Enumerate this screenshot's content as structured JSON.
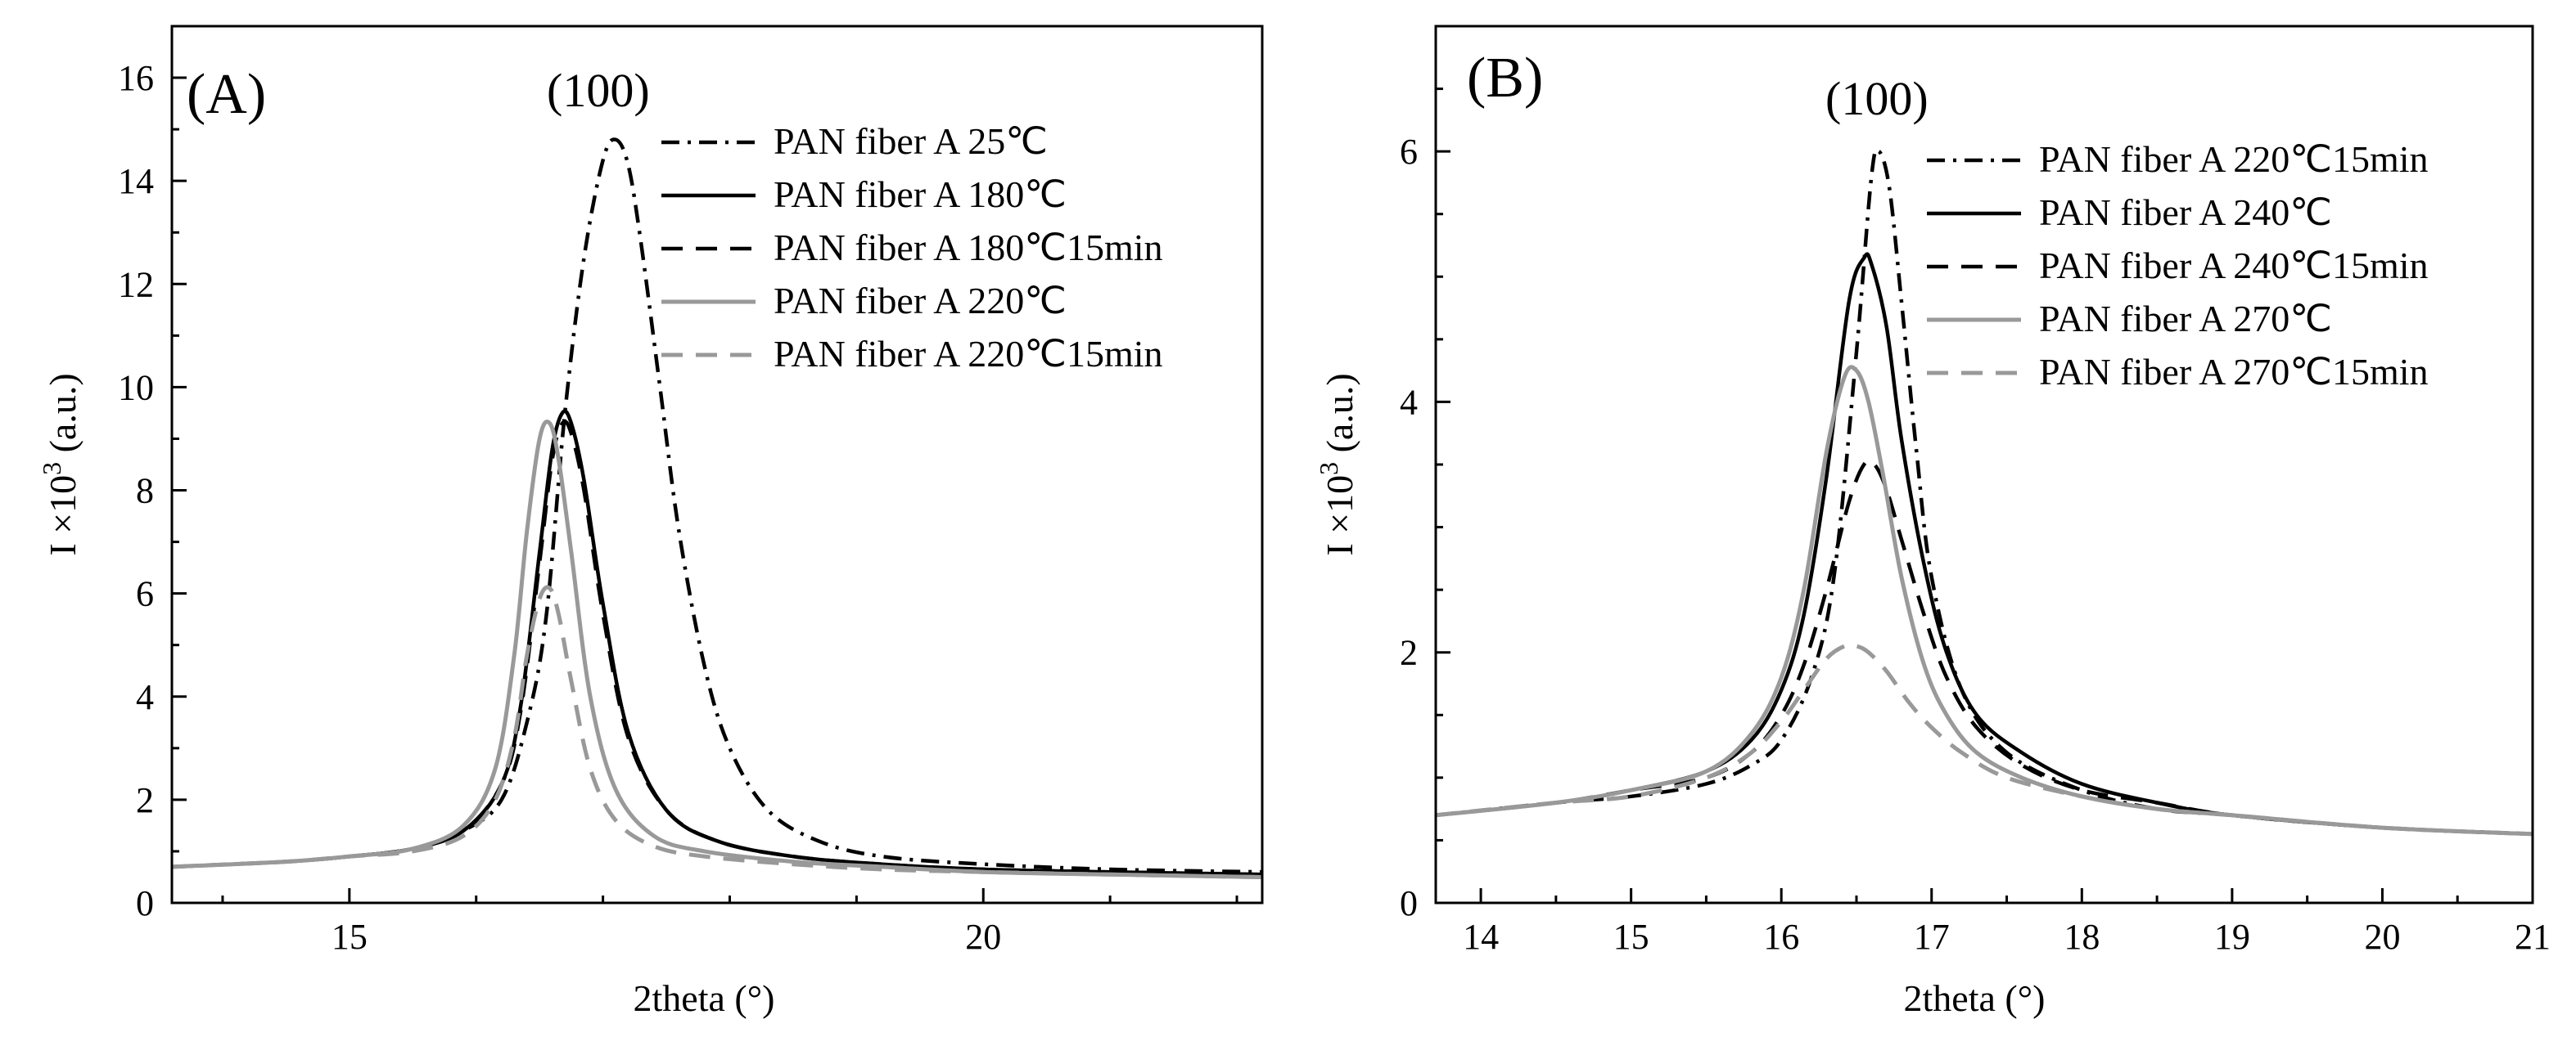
{
  "chart_data": [
    {
      "type": "line",
      "panel_label": "(A)",
      "annotation": "(100)",
      "xlabel": "2theta (°)",
      "ylabel": {
        "base": "I ×10",
        "sup": "3",
        "unit": " (a.u.)"
      },
      "xlim": [
        13.6,
        22.2
      ],
      "ylim": [
        0,
        17
      ],
      "x_ticks": [
        15,
        20
      ],
      "y_ticks": [
        0,
        2,
        4,
        6,
        8,
        10,
        12,
        14,
        16
      ],
      "legend_position": "top-right",
      "series": [
        {
          "name": "PAN fiber A 25℃",
          "style": "dashdot",
          "color": "#000000",
          "x": [
            13.6,
            14.5,
            15.0,
            15.5,
            15.9,
            16.2,
            16.4,
            16.55,
            16.7,
            16.85,
            17.0,
            17.1,
            17.2,
            17.3,
            17.45,
            17.6,
            17.8,
            18.0,
            18.3,
            18.7,
            19.2,
            20.0,
            21.0,
            22.2
          ],
          "y": [
            0.7,
            0.8,
            0.9,
            1.05,
            1.4,
            2.0,
            3.5,
            5.5,
            9.5,
            12.5,
            14.4,
            14.8,
            14.3,
            12.8,
            10.0,
            7.2,
            4.6,
            3.0,
            1.8,
            1.2,
            0.9,
            0.75,
            0.65,
            0.6
          ]
        },
        {
          "name": "PAN fiber A 180℃",
          "style": "solid",
          "color": "#000000",
          "x": [
            13.6,
            14.5,
            15.0,
            15.5,
            15.9,
            16.2,
            16.35,
            16.5,
            16.6,
            16.68,
            16.75,
            16.85,
            17.0,
            17.2,
            17.5,
            17.9,
            18.5,
            19.2,
            20.0,
            21.0,
            22.2
          ],
          "y": [
            0.7,
            0.8,
            0.9,
            1.05,
            1.4,
            2.3,
            3.8,
            6.8,
            8.8,
            9.5,
            9.3,
            8.2,
            5.8,
            3.3,
            1.8,
            1.2,
            0.9,
            0.75,
            0.65,
            0.6,
            0.55
          ]
        },
        {
          "name": "PAN fiber A 180℃15min",
          "style": "dashed",
          "color": "#000000",
          "x": [
            13.6,
            14.5,
            15.0,
            15.5,
            15.9,
            16.2,
            16.35,
            16.5,
            16.6,
            16.68,
            16.75,
            16.85,
            17.0,
            17.2,
            17.5,
            17.9,
            18.5,
            19.2,
            20.0,
            21.0,
            22.2
          ],
          "y": [
            0.7,
            0.8,
            0.9,
            1.05,
            1.4,
            2.3,
            3.7,
            6.6,
            8.6,
            9.3,
            9.1,
            8.0,
            5.6,
            3.2,
            1.8,
            1.2,
            0.9,
            0.75,
            0.65,
            0.6,
            0.55
          ]
        },
        {
          "name": "PAN fiber A 220℃",
          "style": "solid",
          "color": "#999999",
          "x": [
            13.6,
            14.5,
            15.0,
            15.5,
            15.9,
            16.15,
            16.3,
            16.4,
            16.5,
            16.58,
            16.65,
            16.75,
            16.9,
            17.1,
            17.4,
            17.8,
            18.5,
            19.2,
            20.0,
            21.0,
            22.2
          ],
          "y": [
            0.7,
            0.8,
            0.9,
            1.05,
            1.5,
            2.6,
            4.8,
            7.2,
            9.0,
            9.3,
            8.6,
            6.8,
            4.0,
            2.2,
            1.3,
            1.0,
            0.8,
            0.7,
            0.6,
            0.55,
            0.5
          ]
        },
        {
          "name": "PAN fiber A 220℃15min",
          "style": "dashed",
          "color": "#999999",
          "x": [
            13.6,
            14.5,
            15.0,
            15.5,
            15.9,
            16.15,
            16.3,
            16.4,
            16.5,
            16.58,
            16.65,
            16.75,
            16.9,
            17.1,
            17.4,
            17.8,
            18.5,
            19.2,
            20.0,
            21.0,
            22.2
          ],
          "y": [
            0.7,
            0.8,
            0.9,
            1.0,
            1.3,
            2.0,
            3.2,
            4.8,
            5.9,
            6.1,
            5.6,
            4.3,
            2.6,
            1.6,
            1.1,
            0.9,
            0.75,
            0.65,
            0.6,
            0.55,
            0.5
          ]
        }
      ]
    },
    {
      "type": "line",
      "panel_label": "(B)",
      "annotation": "(100)",
      "xlabel": "2theta (°)",
      "ylabel": {
        "base": "I ×10",
        "sup": "3",
        "unit": " (a.u.)"
      },
      "xlim": [
        13.7,
        21
      ],
      "ylim": [
        0,
        7
      ],
      "x_ticks": [
        14,
        15,
        16,
        17,
        18,
        19,
        20,
        21
      ],
      "y_ticks": [
        0,
        2,
        4,
        6
      ],
      "legend_position": "top-right",
      "series": [
        {
          "name": "PAN fiber A 220℃15min",
          "style": "dashdot",
          "color": "#000000",
          "x": [
            13.7,
            14.5,
            15.0,
            15.5,
            15.8,
            16.0,
            16.2,
            16.35,
            16.5,
            16.6,
            16.65,
            16.72,
            16.8,
            16.9,
            17.0,
            17.2,
            17.5,
            18.0,
            18.5,
            19.0,
            20.0,
            21.0
          ],
          "y": [
            0.7,
            0.8,
            0.85,
            0.95,
            1.1,
            1.3,
            1.8,
            2.6,
            4.4,
            5.8,
            6.0,
            5.7,
            4.8,
            3.6,
            2.6,
            1.7,
            1.2,
            0.9,
            0.75,
            0.7,
            0.6,
            0.55
          ]
        },
        {
          "name": "PAN fiber A 240℃",
          "style": "solid",
          "color": "#000000",
          "x": [
            13.7,
            14.5,
            15.0,
            15.5,
            15.8,
            16.0,
            16.15,
            16.3,
            16.45,
            16.55,
            16.6,
            16.7,
            16.8,
            16.95,
            17.1,
            17.3,
            17.6,
            18.0,
            18.5,
            19.0,
            20.0,
            21.0
          ],
          "y": [
            0.7,
            0.8,
            0.9,
            1.05,
            1.3,
            1.7,
            2.3,
            3.4,
            4.8,
            5.15,
            5.1,
            4.6,
            3.7,
            2.7,
            2.0,
            1.5,
            1.2,
            0.95,
            0.8,
            0.7,
            0.6,
            0.55
          ]
        },
        {
          "name": "PAN fiber A 240℃15min",
          "style": "dashed",
          "color": "#000000",
          "x": [
            13.7,
            14.5,
            15.0,
            15.5,
            15.8,
            16.0,
            16.15,
            16.3,
            16.45,
            16.55,
            16.62,
            16.7,
            16.8,
            16.95,
            17.1,
            17.3,
            17.6,
            18.0,
            18.5,
            19.0,
            20.0,
            21.0
          ],
          "y": [
            0.7,
            0.8,
            0.9,
            1.0,
            1.2,
            1.5,
            1.9,
            2.5,
            3.2,
            3.5,
            3.5,
            3.3,
            2.9,
            2.3,
            1.8,
            1.4,
            1.1,
            0.9,
            0.8,
            0.7,
            0.6,
            0.55
          ]
        },
        {
          "name": "PAN fiber A 270℃",
          "style": "solid",
          "color": "#999999",
          "x": [
            13.7,
            14.5,
            15.0,
            15.5,
            15.8,
            16.0,
            16.15,
            16.3,
            16.42,
            16.5,
            16.58,
            16.68,
            16.8,
            16.95,
            17.1,
            17.3,
            17.6,
            18.0,
            18.5,
            19.0,
            20.0,
            21.0
          ],
          "y": [
            0.7,
            0.8,
            0.9,
            1.05,
            1.35,
            1.8,
            2.5,
            3.6,
            4.2,
            4.25,
            4.0,
            3.4,
            2.6,
            1.9,
            1.5,
            1.2,
            1.0,
            0.85,
            0.75,
            0.7,
            0.6,
            0.55
          ]
        },
        {
          "name": "PAN fiber A 270℃15min",
          "style": "dashed",
          "color": "#999999",
          "x": [
            13.7,
            14.5,
            15.0,
            15.5,
            15.8,
            16.0,
            16.15,
            16.3,
            16.42,
            16.5,
            16.58,
            16.7,
            16.85,
            17.0,
            17.2,
            17.5,
            18.0,
            18.5,
            19.0,
            20.0,
            21.0
          ],
          "y": [
            0.7,
            0.8,
            0.85,
            1.0,
            1.2,
            1.45,
            1.7,
            1.95,
            2.05,
            2.05,
            2.0,
            1.85,
            1.6,
            1.4,
            1.2,
            1.0,
            0.85,
            0.75,
            0.7,
            0.6,
            0.55
          ]
        }
      ]
    }
  ]
}
